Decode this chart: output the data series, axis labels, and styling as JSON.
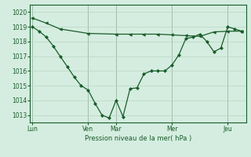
{
  "bg_color": "#d4ede0",
  "line_color": "#1a5c2a",
  "grid_color": "#b8d4c4",
  "xlabel_text": "Pression niveau de la mer( hPa )",
  "ylim": [
    1012.5,
    1020.5
  ],
  "yticks": [
    1013,
    1014,
    1015,
    1016,
    1017,
    1018,
    1019,
    1020
  ],
  "day_labels": [
    "Lun",
    "Ven",
    "Mar",
    "Mer",
    "Jeu"
  ],
  "day_positions": [
    0.0,
    0.267,
    0.4,
    0.667,
    0.933
  ],
  "line1_x": [
    0.0,
    0.067,
    0.133,
    0.267,
    0.4,
    0.467,
    0.533,
    0.6,
    0.667,
    0.733,
    0.8,
    0.867,
    0.933,
    1.0
  ],
  "line1_y": [
    1019.6,
    1019.25,
    1018.85,
    1018.55,
    1018.5,
    1018.5,
    1018.5,
    1018.5,
    1018.45,
    1018.4,
    1018.35,
    1018.65,
    1018.7,
    1018.7
  ],
  "line2_x": [
    0.0,
    0.033,
    0.067,
    0.1,
    0.133,
    0.167,
    0.2,
    0.233,
    0.267,
    0.3,
    0.333,
    0.367,
    0.4,
    0.433,
    0.467,
    0.5,
    0.533,
    0.567,
    0.6,
    0.633,
    0.667,
    0.7,
    0.733,
    0.767,
    0.8,
    0.833,
    0.867,
    0.9,
    0.933,
    0.967,
    1.0
  ],
  "line2_y": [
    1019.0,
    1018.7,
    1018.3,
    1017.7,
    1017.0,
    1016.3,
    1015.6,
    1015.0,
    1014.7,
    1013.8,
    1013.0,
    1012.8,
    1014.0,
    1012.9,
    1014.8,
    1014.85,
    1015.8,
    1016.0,
    1016.0,
    1016.0,
    1016.4,
    1017.1,
    1018.2,
    1018.3,
    1018.5,
    1018.0,
    1017.3,
    1017.55,
    1019.0,
    1018.85,
    1018.7
  ]
}
